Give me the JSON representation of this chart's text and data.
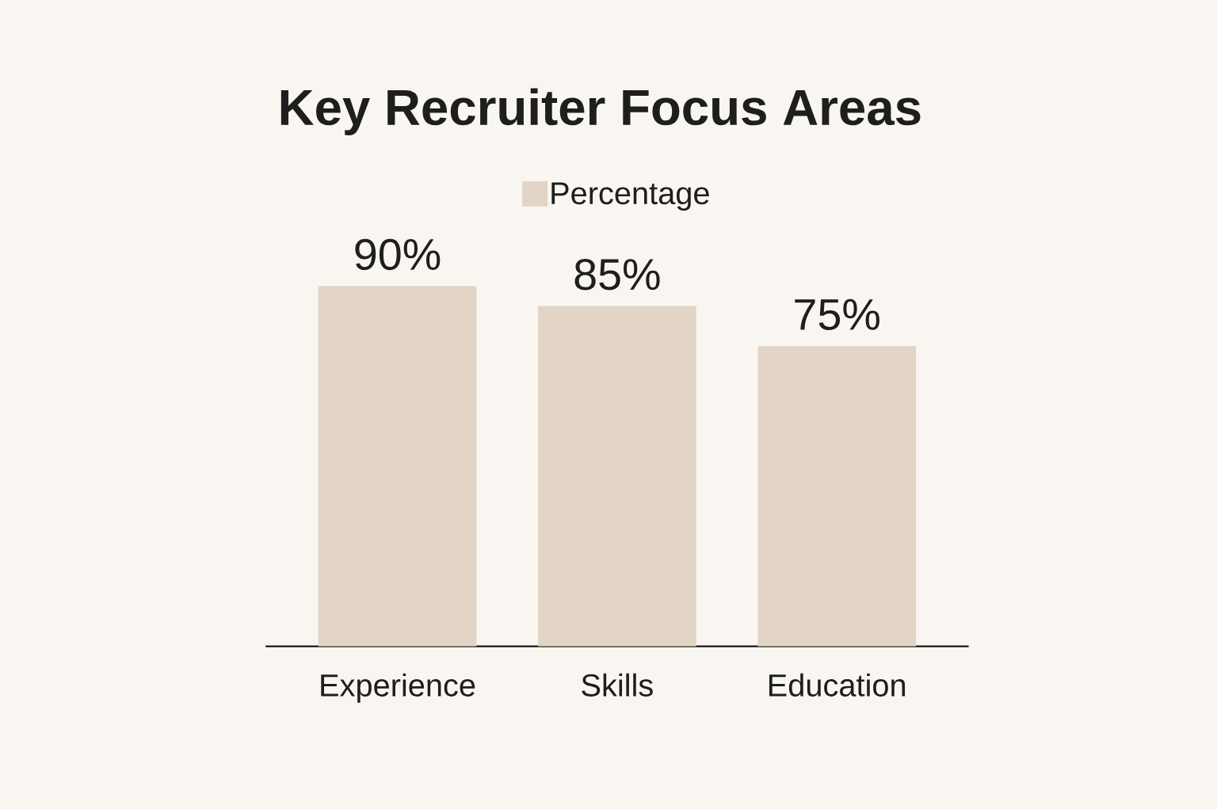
{
  "chart_data": {
    "type": "bar",
    "title": "Key Recruiter Focus Areas",
    "categories": [
      "Experience",
      "Skills",
      "Education"
    ],
    "series": [
      {
        "name": "Percentage",
        "color": "#e3d5c5",
        "values": [
          90,
          85,
          75
        ],
        "value_labels": [
          "90%",
          "85%",
          "75%"
        ]
      }
    ],
    "legend": "top",
    "tick_labels": "x"
  }
}
